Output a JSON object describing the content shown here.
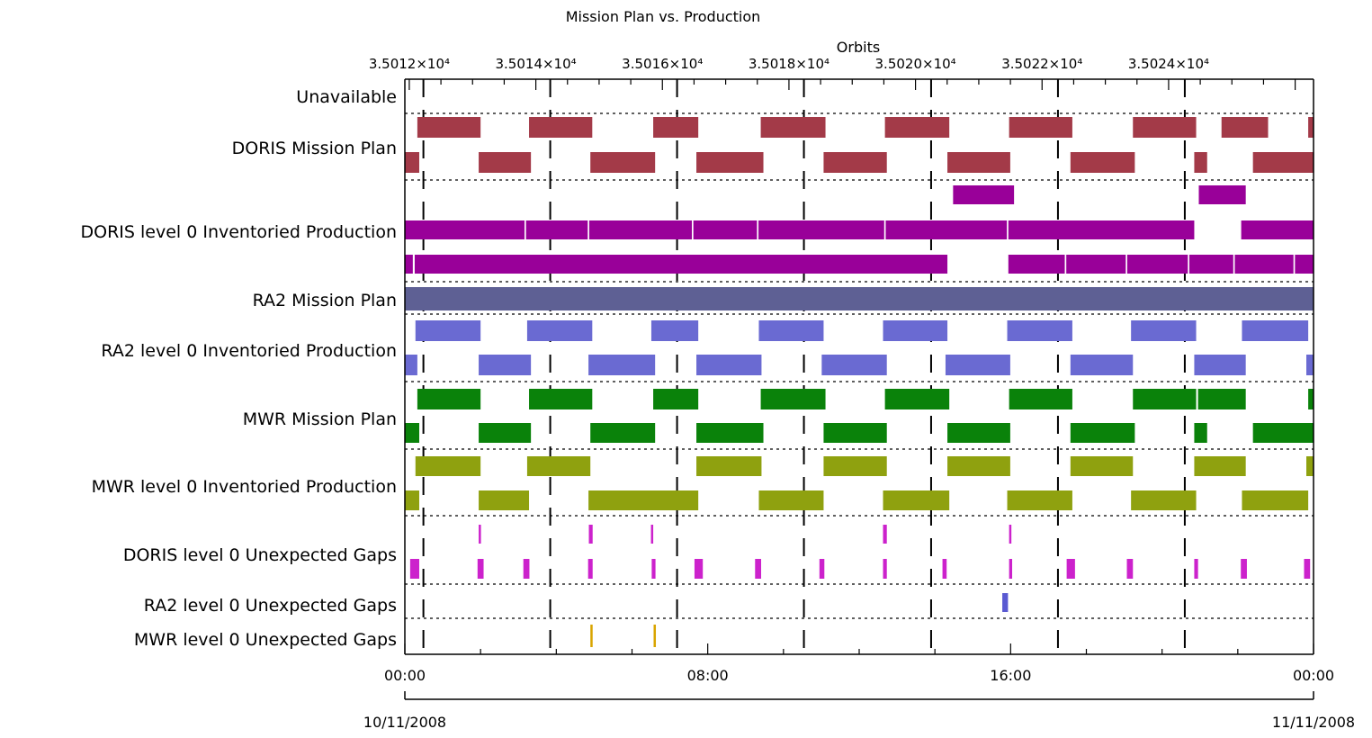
{
  "chart_data": {
    "type": "gantt",
    "title": "Mission Plan vs. Production",
    "top_axis": {
      "label": "Orbits",
      "tick_labels": [
        "3.5012×10⁴",
        "3.5014×10⁴",
        "3.5016×10⁴",
        "3.5018×10⁴",
        "3.5020×10⁴",
        "3.5022×10⁴",
        "3.5024×10⁴"
      ],
      "ticks_orbit": [
        35012,
        35014,
        35016,
        35018,
        35020,
        35022,
        35024
      ],
      "orbit_range": [
        35011.93,
        35026.29
      ]
    },
    "bottom_axis": {
      "time_range_hours": [
        0,
        24
      ],
      "tick_hours": [
        0,
        8,
        16,
        24
      ],
      "tick_labels": [
        "00:00",
        "08:00",
        "16:00",
        "00:00"
      ],
      "minor_step_hours": 2,
      "start_date": "10/11/2008",
      "end_date": "11/11/2008"
    },
    "orbit_lines_hours": [
      0.49,
      3.84,
      7.19,
      10.54,
      13.9,
      17.25,
      20.6
    ],
    "row_labels": [
      "Unavailable",
      "DORIS Mission Plan",
      "DORIS level 0 Inventoried Production",
      "RA2 Mission Plan",
      "RA2 level 0 Inventoried Production",
      "MWR Mission Plan",
      "MWR level 0 Inventoried Production",
      "DORIS level 0 Unexpected Gaps",
      "RA2 level 0 Unexpected Gaps",
      "MWR level 0 Unexpected Gaps"
    ],
    "colors": {
      "doris_plan": "#a33a48",
      "doris_prod": "#990099",
      "ra2_plan": "#5e6094",
      "ra2_prod": "#6a6ad2",
      "mwr_plan": "#0a820a",
      "mwr_prod": "#8fa10f",
      "doris_gap": "#cc22cc",
      "ra2_gap": "#5a5ad2",
      "mwr_gap": "#d9a400"
    },
    "tracks": [
      {
        "row": 1,
        "lane": 0,
        "color": "doris_plan",
        "intervals_hours": [
          [
            0.33,
            2.0
          ],
          [
            3.28,
            4.95
          ],
          [
            6.56,
            7.75
          ],
          [
            9.4,
            11.11
          ],
          [
            12.68,
            14.38
          ],
          [
            15.96,
            17.63
          ],
          [
            19.23,
            20.9
          ],
          [
            21.57,
            22.8
          ],
          [
            23.86,
            24
          ]
        ]
      },
      {
        "row": 1,
        "lane": 1,
        "color": "doris_plan",
        "intervals_hours": [
          [
            0,
            0.38
          ],
          [
            1.95,
            3.33
          ],
          [
            4.9,
            6.61
          ],
          [
            7.7,
            9.47
          ],
          [
            11.06,
            12.73
          ],
          [
            14.33,
            15.99
          ],
          [
            17.58,
            19.28
          ],
          [
            20.85,
            21.19
          ],
          [
            22.4,
            24
          ]
        ]
      },
      {
        "row": 2,
        "lane": 0,
        "color": "doris_prod",
        "intervals_hours": [
          [
            14.48,
            16.09
          ],
          [
            20.97,
            22.21
          ]
        ]
      },
      {
        "row": 2,
        "lane": 1,
        "color": "doris_prod",
        "intervals_hours": [
          [
            0,
            3.16
          ],
          [
            3.2,
            4.83
          ],
          [
            4.87,
            7.58
          ],
          [
            7.62,
            9.3
          ],
          [
            9.34,
            12.66
          ],
          [
            12.7,
            15.9
          ],
          [
            15.94,
            20.85
          ],
          [
            22.09,
            24
          ]
        ]
      },
      {
        "row": 2,
        "lane": 2,
        "color": "doris_prod",
        "intervals_hours": [
          [
            0,
            0.21
          ],
          [
            0.26,
            14.33
          ],
          [
            15.94,
            17.43
          ],
          [
            17.47,
            19.04
          ],
          [
            19.08,
            20.68
          ],
          [
            20.72,
            21.88
          ],
          [
            21.92,
            23.47
          ],
          [
            23.51,
            24
          ]
        ]
      },
      {
        "row": 3,
        "lane": 0,
        "color": "ra2_plan",
        "intervals_hours": [
          [
            0,
            24
          ]
        ]
      },
      {
        "row": 4,
        "lane": 0,
        "color": "ra2_prod",
        "intervals_hours": [
          [
            0.28,
            2.0
          ],
          [
            3.23,
            4.95
          ],
          [
            6.51,
            7.75
          ],
          [
            9.35,
            11.06
          ],
          [
            12.63,
            14.33
          ],
          [
            15.91,
            17.63
          ],
          [
            19.18,
            20.9
          ],
          [
            22.11,
            23.86
          ]
        ]
      },
      {
        "row": 4,
        "lane": 1,
        "color": "ra2_prod",
        "intervals_hours": [
          [
            0,
            0.33
          ],
          [
            1.95,
            3.33
          ],
          [
            4.85,
            6.61
          ],
          [
            7.7,
            9.42
          ],
          [
            11.01,
            12.73
          ],
          [
            14.28,
            15.99
          ],
          [
            17.58,
            19.23
          ],
          [
            20.85,
            22.21
          ],
          [
            23.81,
            24
          ]
        ]
      },
      {
        "row": 5,
        "lane": 0,
        "color": "mwr_plan",
        "intervals_hours": [
          [
            0.33,
            2.0
          ],
          [
            3.28,
            4.95
          ],
          [
            6.56,
            7.75
          ],
          [
            9.4,
            11.11
          ],
          [
            12.68,
            14.38
          ],
          [
            15.96,
            17.63
          ],
          [
            19.23,
            20.9
          ],
          [
            20.95,
            22.21
          ],
          [
            23.86,
            24
          ]
        ]
      },
      {
        "row": 5,
        "lane": 1,
        "color": "mwr_plan",
        "intervals_hours": [
          [
            0,
            0.38
          ],
          [
            1.95,
            3.33
          ],
          [
            4.9,
            6.61
          ],
          [
            7.7,
            9.47
          ],
          [
            11.06,
            12.73
          ],
          [
            14.33,
            15.99
          ],
          [
            17.58,
            19.28
          ],
          [
            20.85,
            21.19
          ],
          [
            22.4,
            24
          ]
        ]
      },
      {
        "row": 6,
        "lane": 0,
        "color": "mwr_prod",
        "intervals_hours": [
          [
            0.28,
            2.0
          ],
          [
            3.23,
            4.9
          ],
          [
            7.7,
            9.42
          ],
          [
            11.06,
            12.73
          ],
          [
            14.33,
            15.99
          ],
          [
            17.58,
            19.23
          ],
          [
            20.85,
            22.21
          ],
          [
            23.81,
            24
          ]
        ]
      },
      {
        "row": 6,
        "lane": 1,
        "color": "mwr_prod",
        "intervals_hours": [
          [
            0,
            0.38
          ],
          [
            1.95,
            3.28
          ],
          [
            4.85,
            7.75
          ],
          [
            9.35,
            11.06
          ],
          [
            12.63,
            14.38
          ],
          [
            15.91,
            17.63
          ],
          [
            19.18,
            20.9
          ],
          [
            22.11,
            23.86
          ]
        ]
      },
      {
        "row": 7,
        "lane": 0,
        "color": "doris_gap",
        "intervals_hours": [
          [
            1.95,
            2.01
          ],
          [
            4.86,
            4.96
          ],
          [
            6.5,
            6.56
          ],
          [
            12.63,
            12.73
          ],
          [
            15.96,
            16.02
          ]
        ]
      },
      {
        "row": 7,
        "lane": 1,
        "color": "doris_gap",
        "intervals_hours": [
          [
            0.14,
            0.38
          ],
          [
            1.92,
            2.08
          ],
          [
            3.13,
            3.29
          ],
          [
            4.84,
            4.96
          ],
          [
            6.52,
            6.62
          ],
          [
            7.65,
            7.87
          ],
          [
            9.25,
            9.41
          ],
          [
            10.95,
            11.08
          ],
          [
            12.63,
            12.73
          ],
          [
            14.2,
            14.31
          ],
          [
            15.96,
            16.04
          ],
          [
            17.48,
            17.7
          ],
          [
            19.07,
            19.23
          ],
          [
            20.85,
            20.95
          ],
          [
            22.08,
            22.24
          ],
          [
            23.75,
            23.91
          ]
        ]
      },
      {
        "row": 8,
        "lane": 0,
        "color": "ra2_gap",
        "intervals_hours": [
          [
            15.78,
            15.93
          ]
        ]
      },
      {
        "row": 9,
        "lane": 0,
        "color": "mwr_gap",
        "intervals_hours": [
          [
            4.9,
            4.96
          ],
          [
            6.57,
            6.63
          ]
        ]
      }
    ]
  }
}
